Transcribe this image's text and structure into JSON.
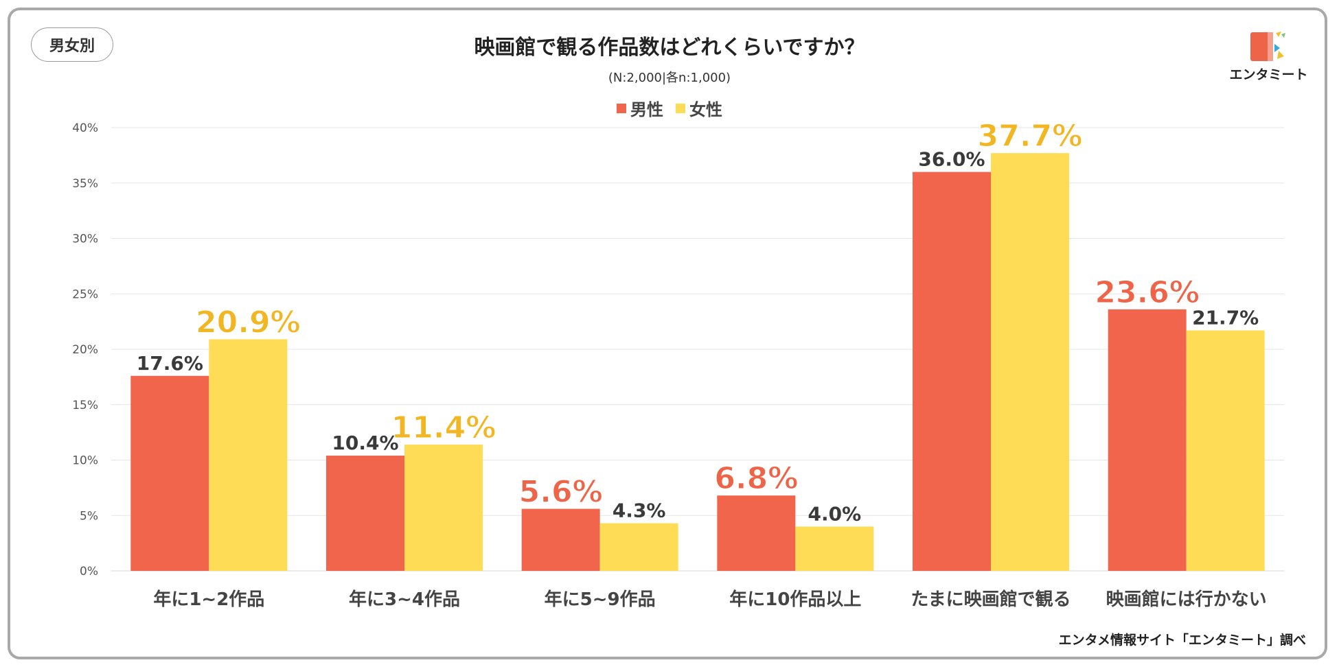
{
  "badge": "男女別",
  "title": "映画館で観る作品数はどれくらいですか？",
  "subtitle": "(N:2,000|各n:1,000)",
  "logo_text": "エンタミート",
  "source": "エンタメ情報サイト「エンタミート」調べ",
  "colors": {
    "male": "#f0654b",
    "female": "#ffdc55",
    "highlight_male": "#ee6449",
    "highlight_female": "#f2b622",
    "label_default": "#3a3a3a",
    "grid": "#e6e6e6"
  },
  "chart_data": {
    "type": "bar",
    "title": "映画館で観る作品数はどれくらいですか？",
    "categories": [
      "年に1~2作品",
      "年に3~4作品",
      "年に5~9作品",
      "年に10作品以上",
      "たまに映画館で観る",
      "映画館には行かない"
    ],
    "series": [
      {
        "name": "男性",
        "values": [
          17.6,
          10.4,
          5.6,
          6.8,
          36.0,
          23.6
        ],
        "labels": [
          "17.6%",
          "10.4%",
          "5.6%",
          "6.8%",
          "36.0%",
          "23.6%"
        ],
        "highlight": [
          false,
          false,
          true,
          true,
          false,
          true
        ]
      },
      {
        "name": "女性",
        "values": [
          20.9,
          11.4,
          4.3,
          4.0,
          37.7,
          21.7
        ],
        "labels": [
          "20.9%",
          "11.4%",
          "4.3%",
          "4.0%",
          "37.7%",
          "21.7%"
        ],
        "highlight": [
          true,
          true,
          false,
          false,
          true,
          false
        ]
      }
    ],
    "ylim": [
      0,
      40
    ],
    "yticks": [
      0,
      5,
      10,
      15,
      20,
      25,
      30,
      35,
      40
    ],
    "ytick_labels": [
      "0%",
      "5%",
      "10%",
      "15%",
      "20%",
      "25%",
      "30%",
      "35%",
      "40%"
    ],
    "legend_position": "top-center",
    "grid": true
  }
}
